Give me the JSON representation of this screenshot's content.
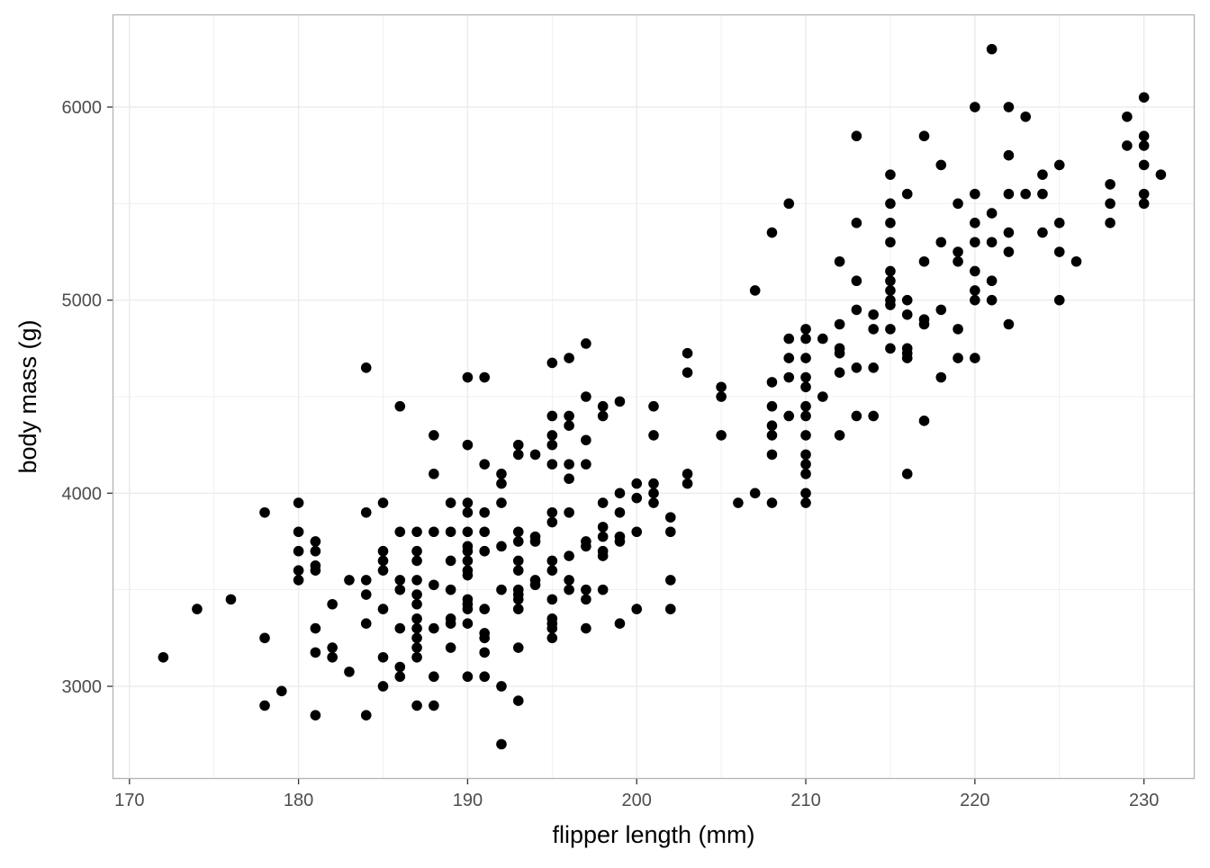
{
  "chart_data": {
    "type": "scatter",
    "title": "",
    "xlabel": "flipper length (mm)",
    "ylabel": "body mass (g)",
    "xlim": [
      169,
      233
    ],
    "ylim": [
      2520,
      6480
    ],
    "x_ticks": [
      170,
      180,
      190,
      200,
      210,
      220,
      230
    ],
    "x_tick_labels": [
      "170",
      "180",
      "190",
      "200",
      "210",
      "220",
      "230"
    ],
    "y_ticks": [
      3000,
      4000,
      5000,
      6000
    ],
    "y_tick_labels": [
      "3000",
      "4000",
      "5000",
      "6000"
    ],
    "grid": true,
    "theme": "light",
    "point_color": "#000000",
    "grid_color": "#ebebeb",
    "border_color": "#b3b3b3",
    "points": [
      [
        172,
        3150
      ],
      [
        174,
        3400
      ],
      [
        176,
        3450
      ],
      [
        178,
        3900
      ],
      [
        178,
        3250
      ],
      [
        178,
        2900
      ],
      [
        179,
        2975
      ],
      [
        180,
        3950
      ],
      [
        180,
        3800
      ],
      [
        180,
        3700
      ],
      [
        180,
        3600
      ],
      [
        180,
        3550
      ],
      [
        181,
        3750
      ],
      [
        181,
        3700
      ],
      [
        181,
        3625
      ],
      [
        181,
        3600
      ],
      [
        181,
        3300
      ],
      [
        181,
        3175
      ],
      [
        181,
        2850
      ],
      [
        182,
        3425
      ],
      [
        182,
        3200
      ],
      [
        182,
        3150
      ],
      [
        183,
        3550
      ],
      [
        183,
        3075
      ],
      [
        184,
        4650
      ],
      [
        184,
        3900
      ],
      [
        184,
        3550
      ],
      [
        184,
        3475
      ],
      [
        184,
        3325
      ],
      [
        184,
        2850
      ],
      [
        185,
        3950
      ],
      [
        185,
        3700
      ],
      [
        185,
        3650
      ],
      [
        185,
        3600
      ],
      [
        185,
        3400
      ],
      [
        185,
        3150
      ],
      [
        185,
        3000
      ],
      [
        186,
        4450
      ],
      [
        186,
        3800
      ],
      [
        186,
        3550
      ],
      [
        186,
        3500
      ],
      [
        186,
        3300
      ],
      [
        186,
        3100
      ],
      [
        186,
        3050
      ],
      [
        187,
        3800
      ],
      [
        187,
        3700
      ],
      [
        187,
        3650
      ],
      [
        187,
        3550
      ],
      [
        187,
        3475
      ],
      [
        187,
        3425
      ],
      [
        187,
        3350
      ],
      [
        187,
        3300
      ],
      [
        187,
        3250
      ],
      [
        187,
        3200
      ],
      [
        187,
        3150
      ],
      [
        187,
        2900
      ],
      [
        188,
        4300
      ],
      [
        188,
        4100
      ],
      [
        188,
        3800
      ],
      [
        188,
        3525
      ],
      [
        188,
        3300
      ],
      [
        188,
        3050
      ],
      [
        188,
        2900
      ],
      [
        189,
        3950
      ],
      [
        189,
        3800
      ],
      [
        189,
        3650
      ],
      [
        189,
        3500
      ],
      [
        189,
        3350
      ],
      [
        189,
        3325
      ],
      [
        189,
        3200
      ],
      [
        190,
        4600
      ],
      [
        190,
        4250
      ],
      [
        190,
        3950
      ],
      [
        190,
        3900
      ],
      [
        190,
        3800
      ],
      [
        190,
        3725
      ],
      [
        190,
        3700
      ],
      [
        190,
        3650
      ],
      [
        190,
        3600
      ],
      [
        190,
        3575
      ],
      [
        190,
        3450
      ],
      [
        190,
        3425
      ],
      [
        190,
        3400
      ],
      [
        190,
        3325
      ],
      [
        190,
        3050
      ],
      [
        191,
        4600
      ],
      [
        191,
        4150
      ],
      [
        191,
        3900
      ],
      [
        191,
        3800
      ],
      [
        191,
        3700
      ],
      [
        191,
        3400
      ],
      [
        191,
        3275
      ],
      [
        191,
        3250
      ],
      [
        191,
        3175
      ],
      [
        191,
        3050
      ],
      [
        192,
        4100
      ],
      [
        192,
        4050
      ],
      [
        192,
        3950
      ],
      [
        192,
        3725
      ],
      [
        192,
        3500
      ],
      [
        192,
        3000
      ],
      [
        192,
        2700
      ],
      [
        193,
        4250
      ],
      [
        193,
        4200
      ],
      [
        193,
        3800
      ],
      [
        193,
        3750
      ],
      [
        193,
        3650
      ],
      [
        193,
        3600
      ],
      [
        193,
        3500
      ],
      [
        193,
        3475
      ],
      [
        193,
        3450
      ],
      [
        193,
        3400
      ],
      [
        193,
        3200
      ],
      [
        193,
        2925
      ],
      [
        194,
        4200
      ],
      [
        194,
        3775
      ],
      [
        194,
        3750
      ],
      [
        194,
        3550
      ],
      [
        194,
        3525
      ],
      [
        195,
        4675
      ],
      [
        195,
        4400
      ],
      [
        195,
        4300
      ],
      [
        195,
        4250
      ],
      [
        195,
        4150
      ],
      [
        195,
        3900
      ],
      [
        195,
        3850
      ],
      [
        195,
        3650
      ],
      [
        195,
        3600
      ],
      [
        195,
        3450
      ],
      [
        195,
        3350
      ],
      [
        195,
        3325
      ],
      [
        195,
        3300
      ],
      [
        195,
        3250
      ],
      [
        196,
        4700
      ],
      [
        196,
        4400
      ],
      [
        196,
        4350
      ],
      [
        196,
        4150
      ],
      [
        196,
        4075
      ],
      [
        196,
        3900
      ],
      [
        196,
        3675
      ],
      [
        196,
        3550
      ],
      [
        196,
        3500
      ],
      [
        197,
        4775
      ],
      [
        197,
        4500
      ],
      [
        197,
        4275
      ],
      [
        197,
        4150
      ],
      [
        197,
        3750
      ],
      [
        197,
        3725
      ],
      [
        197,
        3500
      ],
      [
        197,
        3450
      ],
      [
        197,
        3300
      ],
      [
        198,
        4450
      ],
      [
        198,
        4400
      ],
      [
        198,
        3950
      ],
      [
        198,
        3825
      ],
      [
        198,
        3775
      ],
      [
        198,
        3700
      ],
      [
        198,
        3675
      ],
      [
        198,
        3500
      ],
      [
        199,
        4475
      ],
      [
        199,
        4000
      ],
      [
        199,
        3900
      ],
      [
        199,
        3775
      ],
      [
        199,
        3750
      ],
      [
        199,
        3325
      ],
      [
        200,
        4050
      ],
      [
        200,
        3975
      ],
      [
        200,
        3800
      ],
      [
        200,
        3400
      ],
      [
        201,
        4450
      ],
      [
        201,
        4300
      ],
      [
        201,
        4050
      ],
      [
        201,
        4000
      ],
      [
        201,
        3950
      ],
      [
        202,
        3875
      ],
      [
        202,
        3800
      ],
      [
        202,
        3550
      ],
      [
        202,
        3400
      ],
      [
        203,
        4725
      ],
      [
        203,
        4625
      ],
      [
        203,
        4100
      ],
      [
        203,
        4050
      ],
      [
        205,
        4550
      ],
      [
        205,
        4500
      ],
      [
        205,
        4300
      ],
      [
        206,
        3950
      ],
      [
        207,
        5050
      ],
      [
        207,
        4000
      ],
      [
        208,
        5350
      ],
      [
        208,
        4575
      ],
      [
        208,
        4450
      ],
      [
        208,
        4350
      ],
      [
        208,
        4300
      ],
      [
        208,
        4200
      ],
      [
        208,
        3950
      ],
      [
        209,
        5500
      ],
      [
        209,
        4800
      ],
      [
        209,
        4700
      ],
      [
        209,
        4600
      ],
      [
        209,
        4400
      ],
      [
        210,
        4850
      ],
      [
        210,
        4800
      ],
      [
        210,
        4700
      ],
      [
        210,
        4600
      ],
      [
        210,
        4550
      ],
      [
        210,
        4450
      ],
      [
        210,
        4400
      ],
      [
        210,
        4300
      ],
      [
        210,
        4200
      ],
      [
        210,
        4150
      ],
      [
        210,
        4100
      ],
      [
        210,
        4000
      ],
      [
        210,
        3950
      ],
      [
        211,
        4800
      ],
      [
        211,
        4500
      ],
      [
        212,
        5200
      ],
      [
        212,
        4875
      ],
      [
        212,
        4750
      ],
      [
        212,
        4725
      ],
      [
        212,
        4625
      ],
      [
        212,
        4300
      ],
      [
        213,
        5850
      ],
      [
        213,
        5400
      ],
      [
        213,
        5100
      ],
      [
        213,
        4950
      ],
      [
        213,
        4650
      ],
      [
        213,
        4400
      ],
      [
        214,
        4925
      ],
      [
        214,
        4850
      ],
      [
        214,
        4650
      ],
      [
        214,
        4400
      ],
      [
        215,
        5650
      ],
      [
        215,
        5500
      ],
      [
        215,
        5400
      ],
      [
        215,
        5300
      ],
      [
        215,
        5150
      ],
      [
        215,
        5100
      ],
      [
        215,
        5050
      ],
      [
        215,
        5000
      ],
      [
        215,
        4975
      ],
      [
        215,
        4850
      ],
      [
        215,
        4750
      ],
      [
        216,
        5550
      ],
      [
        216,
        5000
      ],
      [
        216,
        4925
      ],
      [
        216,
        4750
      ],
      [
        216,
        4725
      ],
      [
        216,
        4700
      ],
      [
        216,
        4100
      ],
      [
        217,
        5850
      ],
      [
        217,
        5200
      ],
      [
        217,
        4900
      ],
      [
        217,
        4875
      ],
      [
        217,
        4375
      ],
      [
        218,
        5700
      ],
      [
        218,
        5300
      ],
      [
        218,
        4950
      ],
      [
        218,
        4600
      ],
      [
        219,
        5500
      ],
      [
        219,
        5250
      ],
      [
        219,
        5200
      ],
      [
        219,
        4850
      ],
      [
        219,
        4700
      ],
      [
        220,
        6000
      ],
      [
        220,
        5550
      ],
      [
        220,
        5400
      ],
      [
        220,
        5300
      ],
      [
        220,
        5150
      ],
      [
        220,
        5050
      ],
      [
        220,
        5000
      ],
      [
        220,
        4700
      ],
      [
        221,
        6300
      ],
      [
        221,
        5450
      ],
      [
        221,
        5300
      ],
      [
        221,
        5100
      ],
      [
        221,
        5000
      ],
      [
        222,
        6000
      ],
      [
        222,
        5750
      ],
      [
        222,
        5550
      ],
      [
        222,
        5350
      ],
      [
        222,
        5250
      ],
      [
        222,
        4875
      ],
      [
        223,
        5950
      ],
      [
        223,
        5550
      ],
      [
        224,
        5650
      ],
      [
        224,
        5550
      ],
      [
        224,
        5350
      ],
      [
        225,
        5700
      ],
      [
        225,
        5400
      ],
      [
        225,
        5250
      ],
      [
        225,
        5000
      ],
      [
        226,
        5200
      ],
      [
        228,
        5600
      ],
      [
        228,
        5500
      ],
      [
        228,
        5400
      ],
      [
        229,
        5950
      ],
      [
        229,
        5800
      ],
      [
        230,
        6050
      ],
      [
        230,
        5850
      ],
      [
        230,
        5800
      ],
      [
        230,
        5700
      ],
      [
        230,
        5550
      ],
      [
        230,
        5500
      ],
      [
        231,
        5650
      ]
    ]
  }
}
